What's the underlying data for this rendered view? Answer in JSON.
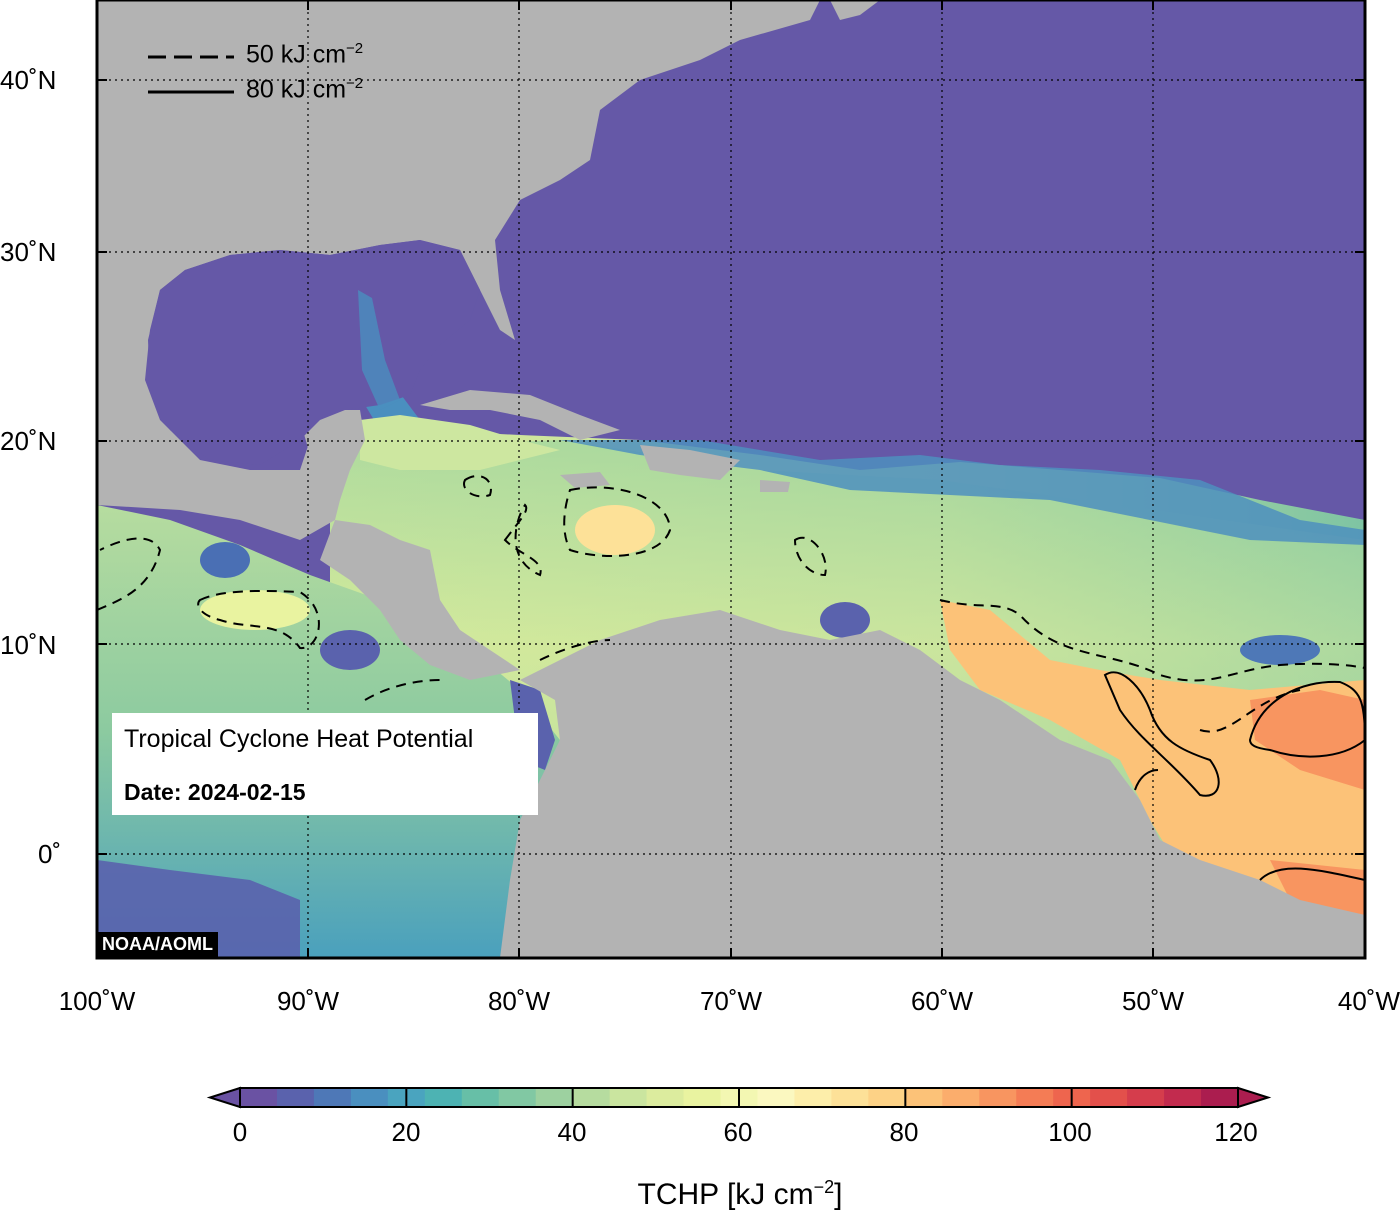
{
  "map": {
    "title": "Tropical Cyclone Heat Potential",
    "date": "Date: 2024-02-15",
    "credit": "NOAA/AOML",
    "lat_labels": [
      "40˚N",
      "30˚N",
      "20˚N",
      "10˚N",
      "0˚"
    ],
    "lon_labels": [
      "100˚W",
      "90˚W",
      "80˚W",
      "70˚W",
      "60˚W",
      "50˚W",
      "40˚W"
    ],
    "extent": {
      "lon": [
        -100,
        -40
      ],
      "lat": [
        -5,
        45
      ]
    },
    "grid": "dotted",
    "legend": {
      "dashed": {
        "value": "50 kJ cm",
        "exp": "−2"
      },
      "solid": {
        "value": "80 kJ cm",
        "exp": "−2"
      }
    },
    "colors": {
      "ocean_low": "#6558a7",
      "land": "#b3b3b3",
      "warm": "#f4a265"
    }
  },
  "colorbar": {
    "ticks": [
      "0",
      "20",
      "40",
      "60",
      "80",
      "100",
      "120"
    ],
    "label": "TCHP [kJ cm",
    "label_exp": "−2",
    "label_end": "]",
    "colors": [
      "#6a52a3",
      "#5a62ad",
      "#4e78b7",
      "#4a8fbf",
      "#4aa4bf",
      "#4db3b3",
      "#67bfa7",
      "#81c8a3",
      "#9dd1a0",
      "#b6dc9f",
      "#cae59f",
      "#dcec9e",
      "#e9f3a0",
      "#f3f7b2",
      "#fbf8c0",
      "#fdeeaa",
      "#fde198",
      "#fdd286",
      "#fcc278",
      "#fbad6c",
      "#f89560",
      "#f47c55",
      "#ee654e",
      "#e3504b",
      "#d53d4c",
      "#c22b4e",
      "#ab1d4f"
    ]
  }
}
